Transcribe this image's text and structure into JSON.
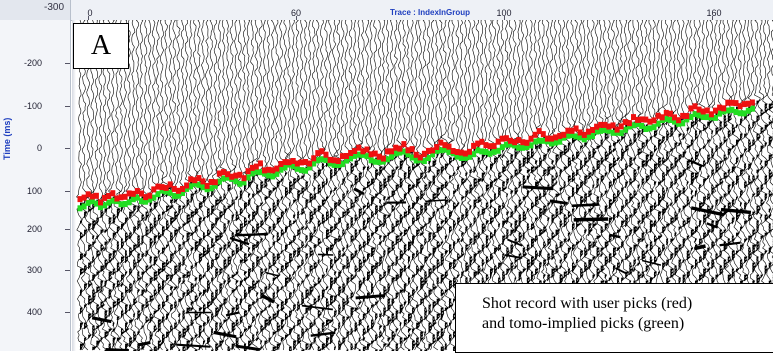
{
  "ruler": {
    "corner_label": "-300",
    "axis_title": "Trace : IndexInGroup",
    "x_ticks": [
      "0",
      "60",
      "100",
      "160"
    ],
    "y_axis_title": "Time (ms)",
    "y_ticks": [
      "-200",
      "-100",
      "0",
      "100",
      "200",
      "300",
      "400"
    ]
  },
  "panel": {
    "label": "A"
  },
  "caption": {
    "line1": "Shot record with user picks (red)",
    "line2": "and tomo-implied picks (green)"
  },
  "colors": {
    "user_picks": "#ee1111",
    "tomo_picks": "#22dd22",
    "axis_title": "#1f3fbf",
    "wiggle": "#000000"
  }
}
